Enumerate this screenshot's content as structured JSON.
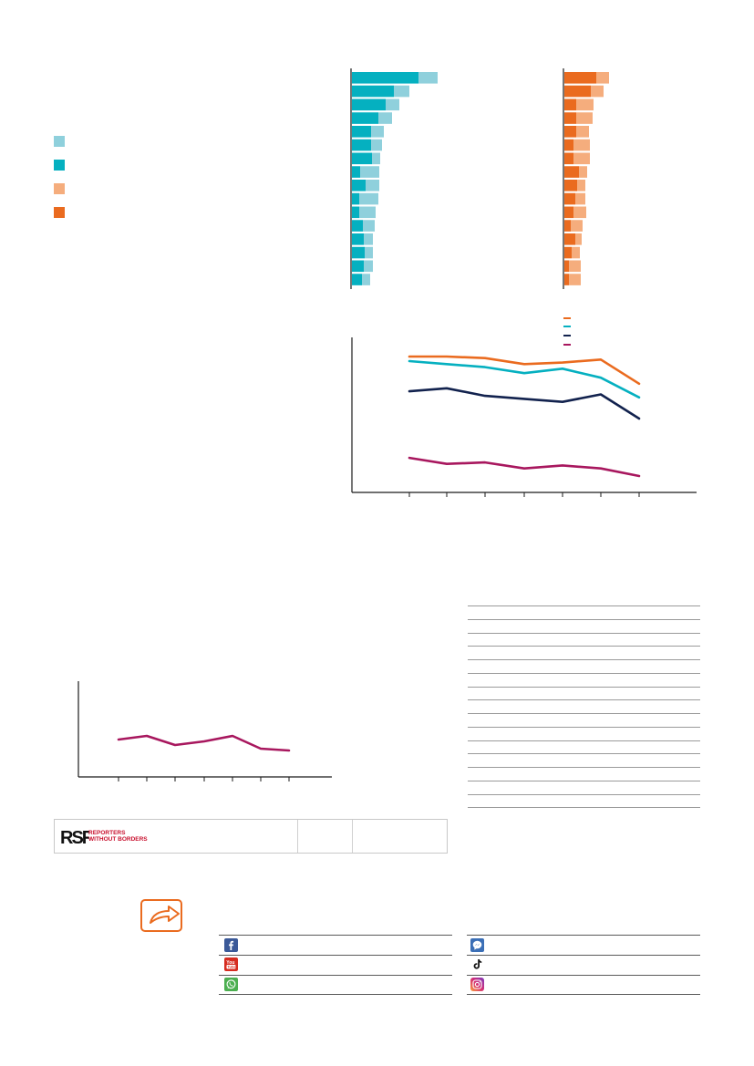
{
  "colors": {
    "teal_light": "#8fd0dc",
    "teal": "#05b0c0",
    "orange_light": "#f5ad7d",
    "orange": "#ea6b1f",
    "navy": "#12224e",
    "magenta": "#a8175e",
    "axis": "#1a1a1a"
  },
  "legend": {
    "items": [
      {
        "swatch_color": "#8fd0dc"
      },
      {
        "swatch_color": "#05b0c0"
      },
      {
        "swatch_color": "#f5ad7d"
      },
      {
        "swatch_color": "#ea6b1f"
      }
    ]
  },
  "line_legend": {
    "items": [
      {
        "color": "#ea6b1f"
      },
      {
        "color": "#05b0c0"
      },
      {
        "color": "#12224e"
      },
      {
        "color": "#a8175e"
      }
    ]
  },
  "logo": {
    "mark": "RSF",
    "line1": "REPORTERS",
    "line2": "WITHOUT BORDERS"
  },
  "share": {
    "icon": "share-arrow-icon",
    "services_left": [
      {
        "icon": "facebook-icon",
        "color": "#3b5998"
      },
      {
        "icon": "youtube-icon",
        "color": "#d62c20"
      },
      {
        "icon": "whatsapp-icon",
        "color": "#4caf50"
      }
    ],
    "services_right": [
      {
        "icon": "messenger-icon",
        "color": "#3b6fb6"
      },
      {
        "icon": "tiktok-icon",
        "color": "#111111"
      },
      {
        "icon": "instagram-icon",
        "color": "#c13584"
      }
    ]
  },
  "chart_data": [
    {
      "type": "bar",
      "stacked": true,
      "series": [
        {
          "color": "#05b0c0",
          "values": [
            73,
            46,
            37,
            29,
            21,
            21,
            22,
            9,
            15,
            8,
            8,
            12,
            13,
            14,
            13,
            11
          ]
        },
        {
          "color": "#8fd0dc",
          "values": [
            21,
            17,
            15,
            15,
            14,
            12,
            9,
            21,
            15,
            21,
            18,
            13,
            10,
            9,
            10,
            9
          ]
        }
      ]
    },
    {
      "type": "bar",
      "stacked": true,
      "series": [
        {
          "color": "#ea6b1f",
          "values": [
            35,
            29,
            13,
            13,
            13,
            10,
            10,
            16,
            14,
            12,
            10,
            7,
            12,
            8,
            5,
            5
          ]
        },
        {
          "color": "#f5ad7d",
          "values": [
            14,
            14,
            19,
            18,
            14,
            18,
            18,
            9,
            9,
            11,
            14,
            13,
            7,
            9,
            13,
            13
          ]
        }
      ]
    },
    {
      "type": "line",
      "series": [
        {
          "color": "#ea6b1f",
          "values": [
            88,
            88,
            87,
            83,
            84,
            86,
            70
          ]
        },
        {
          "color": "#05b0c0",
          "values": [
            85,
            83,
            81,
            77,
            80,
            74,
            61
          ]
        },
        {
          "color": "#12224e",
          "values": [
            65,
            67,
            62,
            60,
            58,
            63,
            47
          ]
        },
        {
          "color": "#a8175e",
          "values": [
            21,
            17,
            18,
            14,
            16,
            14,
            9
          ]
        }
      ]
    },
    {
      "type": "line",
      "series": [
        {
          "color": "#a8175e",
          "values": [
            38,
            40,
            35,
            37,
            40,
            33,
            32
          ]
        }
      ]
    }
  ]
}
